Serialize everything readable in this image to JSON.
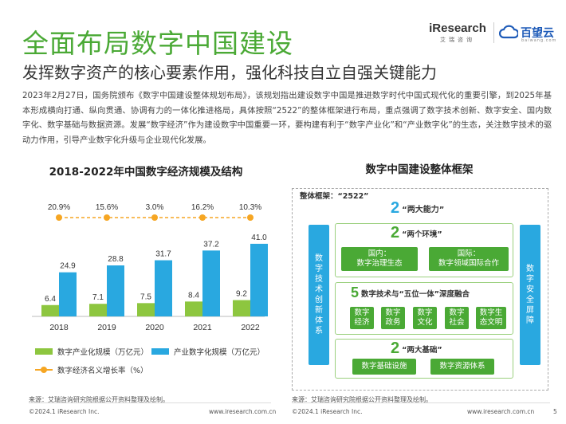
{
  "header": {
    "title": "全面布局数字中国建设",
    "subtitle": "发挥数字资产的核心要素作用，强化科技自立自强关键能力",
    "logo_iresearch": "iResearch",
    "logo_iresearch_sub": "艾瑞咨询",
    "logo_baiwang": "百望云",
    "logo_baiwang_sub": "baiwang.com"
  },
  "intro": "2023年2月27日，国务院颁布《数字中国建设整体规划布局》，该规划指出建设数字中国是推进数字时代中国式现代化的重要引擎，到2025年基本形成横向打通、纵向贯通、协调有力的一体化推进格局，具体按照“2522”的整体框架进行布局，重点强调了数字技术创新、数字安全、国内数字化、数字基础与数据资源。发展“数字经济”作为建设数字中国重要一环，要构建有利于“数字产业化”和“产业数字化”的生态，关注数字技术的驱动力作用，引导产业数字化升级与企业现代化发展。",
  "left": {
    "title": "2018-2022年中国数字经济规模及结构",
    "legend": {
      "industrialization": "数字产业化规模（万亿元）",
      "digitalization": "产业数字化规模（万亿元）",
      "growth": "数字经济名义增长率（%）"
    },
    "source": "来源：艾瑞咨询研究院根据公开资料整理及绘制。",
    "copyright": "©2024.1 iResearch Inc.",
    "website": "www.iresearch.com.cn"
  },
  "chart_data": {
    "type": "bar",
    "title": "2018-2022年中国数字经济规模及结构",
    "categories": [
      "2018",
      "2019",
      "2020",
      "2021",
      "2022"
    ],
    "series": [
      {
        "name": "数字产业化规模（万亿元）",
        "values": [
          6.4,
          7.1,
          7.5,
          8.4,
          9.2
        ],
        "color": "#8dc63f"
      },
      {
        "name": "产业数字化规模（万亿元）",
        "values": [
          24.9,
          28.8,
          31.7,
          37.2,
          41.0
        ],
        "color": "#29a8e0"
      },
      {
        "name": "数字经济名义增长率（%）",
        "type": "line",
        "values": [
          20.9,
          15.6,
          3.0,
          16.2,
          10.3
        ],
        "labels": [
          "20.9%",
          "15.6%",
          "3.0%",
          "16.2%",
          "10.3%"
        ],
        "color": "#f6a623"
      }
    ],
    "bar_labels": {
      "industrialization": [
        "6.4",
        "7.1",
        "7.5",
        "8.4",
        "9.2"
      ],
      "digitalization": [
        "24.9",
        "28.8",
        "31.7",
        "37.2",
        "41.0"
      ]
    },
    "ylim": [
      0,
      45
    ],
    "grid": false
  },
  "right": {
    "title": "数字中国建设整体框架",
    "framework_label": "整体框架：“2522”",
    "left_pillar": "数字技术创新体系",
    "right_pillar": "数字安全屏障",
    "capability": {
      "num": "2",
      "label": "“两大能力”"
    },
    "environment": {
      "num": "2",
      "label": "“两个环境”",
      "boxes": [
        "国内：\n数字治理生态",
        "国际：\n数字领域国际合作"
      ]
    },
    "integration": {
      "num": "5",
      "label": "数字技术与“五位一体”深度融合",
      "boxes": [
        "数字\n经济",
        "数字\n政务",
        "数字\n文化",
        "数字\n社会",
        "数字生\n态文明"
      ]
    },
    "foundation": {
      "num": "2",
      "label": "“两大基础”",
      "boxes": [
        "数字基础设施",
        "数字资源体系"
      ]
    },
    "source": "来源：艾瑞咨询研究院根据公开资料整理及绘制。",
    "copyright": "©2024.1 iResearch Inc.",
    "website": "www.iresearch.com.cn",
    "page": "5"
  },
  "colors": {
    "brand_green": "#4aa935",
    "blue": "#29a8e0",
    "light_green": "#8dc63f",
    "orange": "#f6a623"
  }
}
